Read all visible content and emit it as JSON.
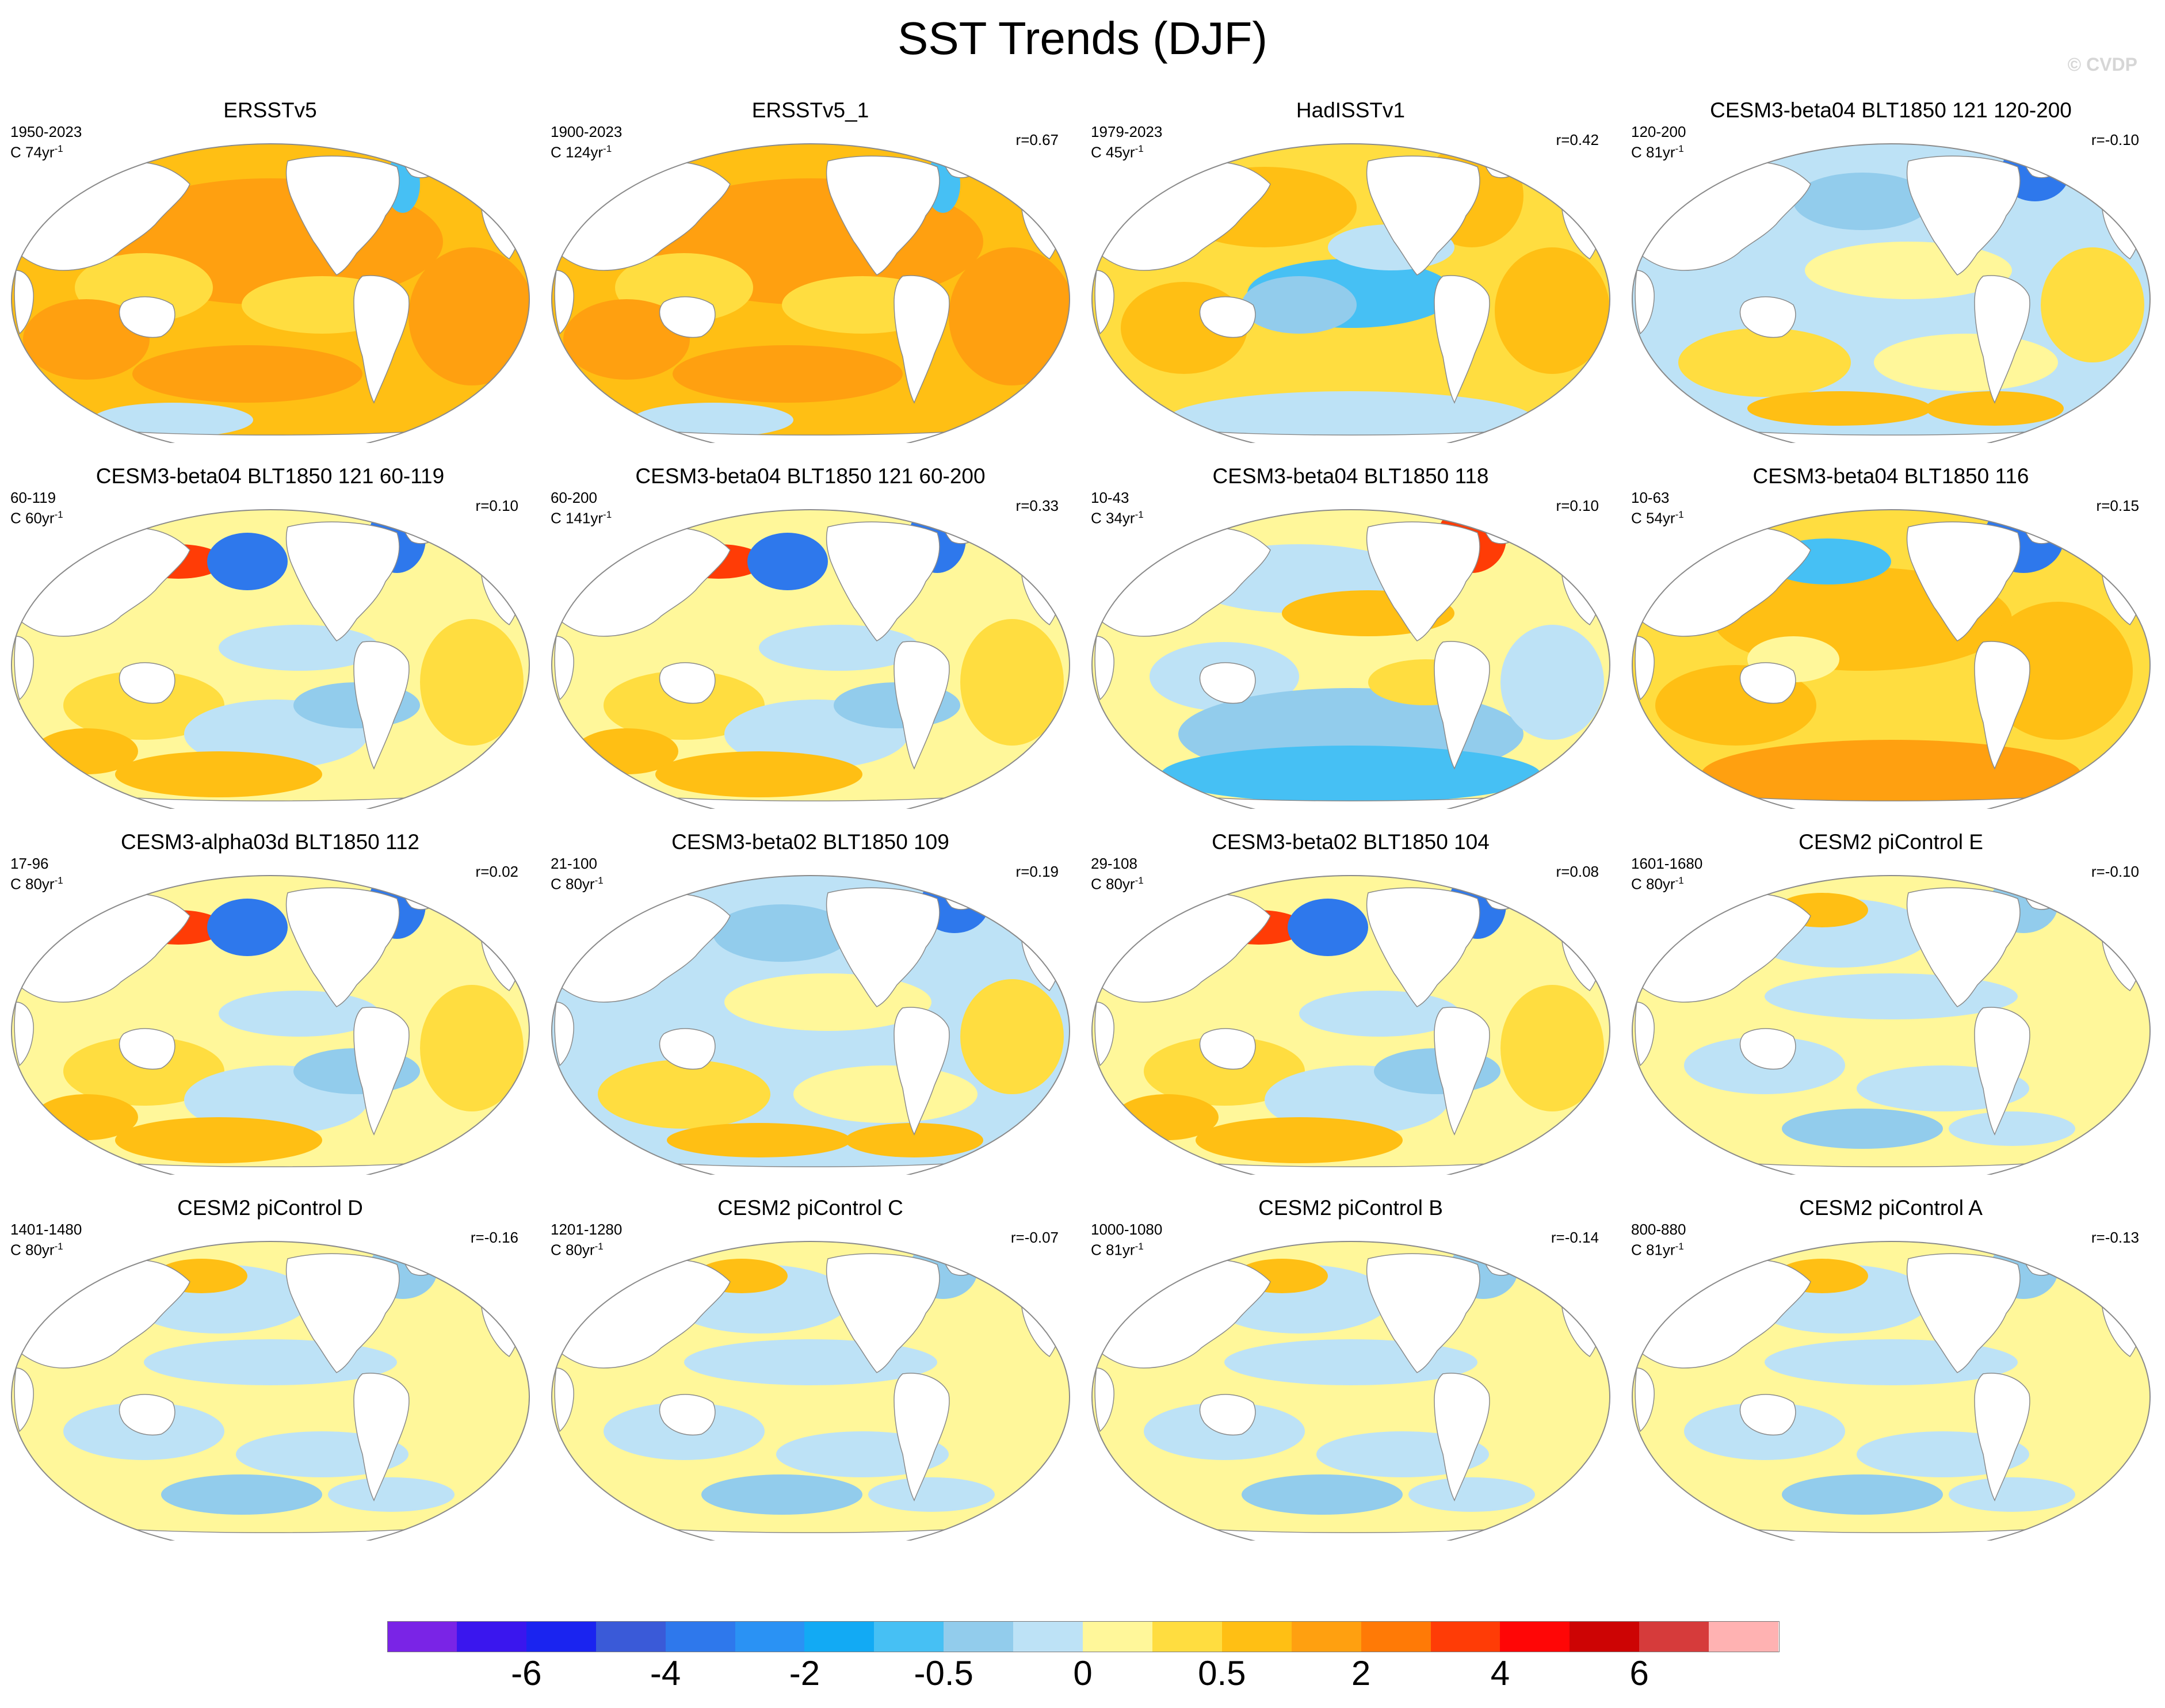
{
  "figure": {
    "title": "SST Trends (DJF)",
    "watermark": "© CVDP"
  },
  "panels": [
    {
      "title": "ERSSTv5",
      "period": "1950-2023",
      "count": "C 74yr",
      "count_exp": "-1",
      "r": "",
      "pattern": "warm-strong"
    },
    {
      "title": "ERSSTv5_1",
      "period": "1900-2023",
      "count": "C 124yr",
      "count_exp": "-1",
      "r": "r=0.67",
      "pattern": "warm-strong"
    },
    {
      "title": "HadISSTv1",
      "period": "1979-2023",
      "count": "C 45yr",
      "count_exp": "-1",
      "r": "r=0.42",
      "pattern": "lanina"
    },
    {
      "title": "CESM3-beta04 BLT1850 121 120-200",
      "period": "120-200",
      "count": "C 81yr",
      "count_exp": "-1",
      "r": "r=-0.10",
      "pattern": "mixed-cool"
    },
    {
      "title": "CESM3-beta04 BLT1850 121 60-119",
      "period": "60-119",
      "count": "C 60yr",
      "count_exp": "-1",
      "r": "r=0.10",
      "pattern": "mixed-warm"
    },
    {
      "title": "CESM3-beta04 BLT1850 121 60-200",
      "period": "60-200",
      "count": "C 141yr",
      "count_exp": "-1",
      "r": "r=0.33",
      "pattern": "mixed-warm"
    },
    {
      "title": "CESM3-beta04 BLT1850 118",
      "period": "10-43",
      "count": "C 34yr",
      "count_exp": "-1",
      "r": "r=0.10",
      "pattern": "south-cool"
    },
    {
      "title": "CESM3-beta04 BLT1850 116",
      "period": "10-63",
      "count": "C 54yr",
      "count_exp": "-1",
      "r": "r=0.15",
      "pattern": "warm-medium"
    },
    {
      "title": "CESM3-alpha03d BLT1850 112",
      "period": "17-96",
      "count": "C 80yr",
      "count_exp": "-1",
      "r": "r=0.02",
      "pattern": "mixed-warm"
    },
    {
      "title": "CESM3-beta02 BLT1850 109",
      "period": "21-100",
      "count": "C 80yr",
      "count_exp": "-1",
      "r": "r=0.19",
      "pattern": "mixed-cool"
    },
    {
      "title": "CESM3-beta02 BLT1850 104",
      "period": "29-108",
      "count": "C 80yr",
      "count_exp": "-1",
      "r": "r=0.08",
      "pattern": "mixed-warm"
    },
    {
      "title": "CESM2 piControl E",
      "period": "1601-1680",
      "count": "C 80yr",
      "count_exp": "-1",
      "r": "r=-0.10",
      "pattern": "pale"
    },
    {
      "title": "CESM2 piControl D",
      "period": "1401-1480",
      "count": "C 80yr",
      "count_exp": "-1",
      "r": "r=-0.16",
      "pattern": "pale"
    },
    {
      "title": "CESM2 piControl C",
      "period": "1201-1280",
      "count": "C 80yr",
      "count_exp": "-1",
      "r": "r=-0.07",
      "pattern": "pale"
    },
    {
      "title": "CESM2 piControl B",
      "period": "1000-1080",
      "count": "C 81yr",
      "count_exp": "-1",
      "r": "r=-0.14",
      "pattern": "pale"
    },
    {
      "title": "CESM2 piControl A",
      "period": "800-880",
      "count": "C 81yr",
      "count_exp": "-1",
      "r": "r=-0.13",
      "pattern": "pale"
    }
  ],
  "colorbar": {
    "colors": [
      "#7a24e6",
      "#3a16ee",
      "#1a24f0",
      "#3a5ad8",
      "#2e78ec",
      "#2a92f4",
      "#12aaf4",
      "#46c0f4",
      "#92ccec",
      "#bde2f6",
      "#fff79a",
      "#ffdd40",
      "#ffbf14",
      "#ffa010",
      "#ff7a06",
      "#ff3c06",
      "#ff0606",
      "#cd0404",
      "#d63b3b",
      "#ffb2b2"
    ],
    "labels": [
      "-6",
      "-4",
      "-2",
      "-0.5",
      "0",
      "0.5",
      "2",
      "4",
      "6"
    ],
    "label_boundaries": [
      2,
      4,
      6,
      8,
      10,
      12,
      14,
      16,
      18
    ]
  },
  "palette": {
    "land": "#ffffff",
    "outline": "#8a8a8a",
    "pale_yellow": "#fff79a",
    "yellow": "#ffdd40",
    "orange": "#ffbf14",
    "dark_orange": "#ffa010",
    "light_blue": "#bde2f6",
    "blue": "#92ccec",
    "mid_blue": "#46c0f4",
    "deep_blue": "#2e78ec",
    "red": "#ff3c06"
  }
}
